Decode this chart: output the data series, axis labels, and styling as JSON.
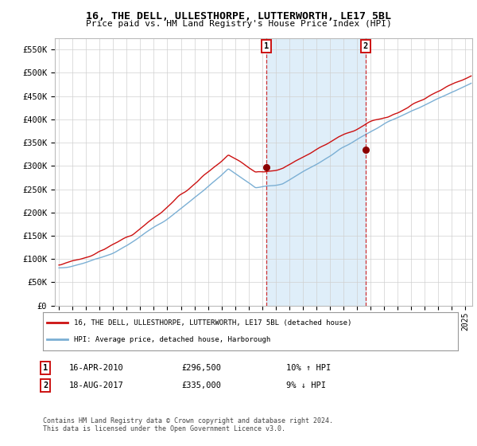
{
  "title": "16, THE DELL, ULLESTHORPE, LUTTERWORTH, LE17 5BL",
  "subtitle": "Price paid vs. HM Land Registry's House Price Index (HPI)",
  "ylabel_ticks": [
    "£0",
    "£50K",
    "£100K",
    "£150K",
    "£200K",
    "£250K",
    "£300K",
    "£350K",
    "£400K",
    "£450K",
    "£500K",
    "£550K"
  ],
  "ytick_values": [
    0,
    50000,
    100000,
    150000,
    200000,
    250000,
    300000,
    350000,
    400000,
    450000,
    500000,
    550000
  ],
  "ylim": [
    0,
    575000
  ],
  "xlim_start": 1994.7,
  "xlim_end": 2025.5,
  "hpi_color": "#7bafd4",
  "hpi_fill_color": "#ddeeff",
  "price_color": "#cc1111",
  "marker1_x": 2010.29,
  "marker1_y": 296500,
  "marker2_x": 2017.63,
  "marker2_y": 335000,
  "shade_color": "#d8eaf8",
  "legend_line1": "16, THE DELL, ULLESTHORPE, LUTTERWORTH, LE17 5BL (detached house)",
  "legend_line2": "HPI: Average price, detached house, Harborough",
  "note1_date": "16-APR-2010",
  "note1_price": "£296,500",
  "note1_hpi": "10% ↑ HPI",
  "note2_date": "18-AUG-2017",
  "note2_price": "£335,000",
  "note2_hpi": "9% ↓ HPI",
  "copyright": "Contains HM Land Registry data © Crown copyright and database right 2024.\nThis data is licensed under the Open Government Licence v3.0.",
  "background_color": "#ffffff",
  "grid_color": "#d0d0d0"
}
